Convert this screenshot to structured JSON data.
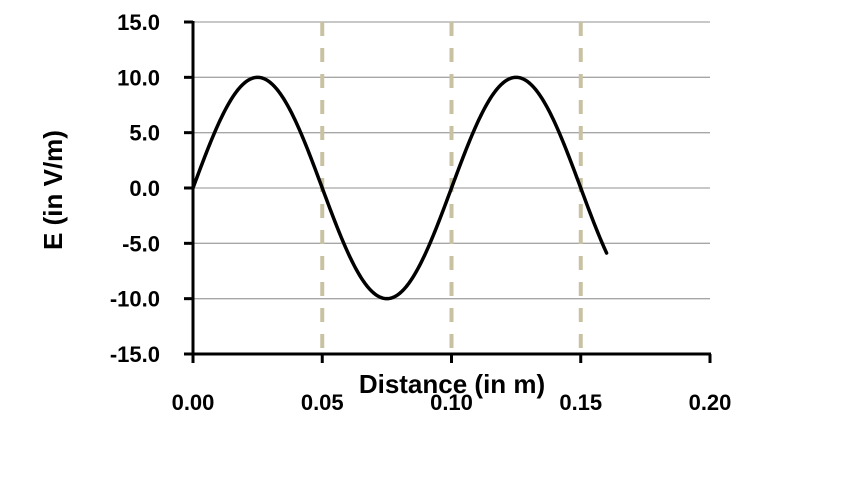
{
  "chart_data": {
    "type": "line",
    "title": "",
    "xlabel": "Distance (in m)",
    "ylabel": "E (in V/m)",
    "xlim": [
      0,
      0.2
    ],
    "ylim": [
      -15,
      15
    ],
    "x_ticks": [
      "0.00",
      "0.05",
      "0.10",
      "0.15",
      "0.20"
    ],
    "y_ticks": [
      "15.0",
      "10.0",
      "5.0",
      "0.0",
      "-5.0",
      "-10.0",
      "-15.0"
    ],
    "grid": "horizontal",
    "vertical_markers": [
      0.05,
      0.1,
      0.15
    ],
    "colors": {
      "line": "#000000",
      "grid": "#a6a6a6",
      "marker": "#c9c2a2"
    },
    "series": [
      {
        "x": [
          0,
          0.01,
          0.02,
          0.025,
          0.03,
          0.04,
          0.05,
          0.06,
          0.07,
          0.075,
          0.08,
          0.09,
          0.1,
          0.11,
          0.12,
          0.125,
          0.13,
          0.14,
          0.15,
          0.16
        ],
        "values": [
          0,
          5.9,
          9.5,
          10,
          9.5,
          5.9,
          0,
          -5.9,
          -9.5,
          -10,
          -9.5,
          -5.9,
          0,
          5.9,
          9.5,
          10,
          9.5,
          5.9,
          0,
          -5.9
        ]
      }
    ]
  }
}
